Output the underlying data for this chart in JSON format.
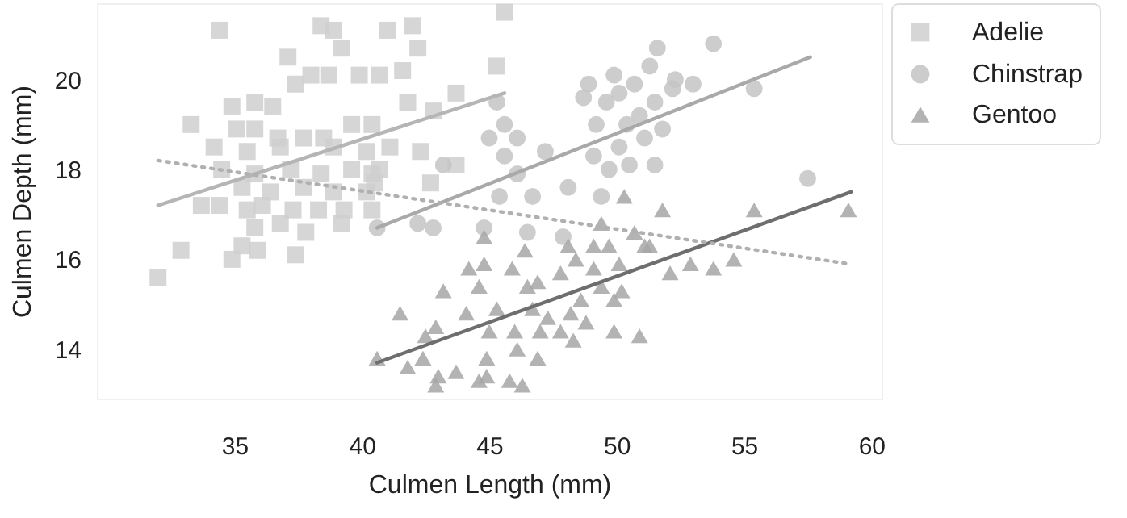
{
  "chart_data": {
    "type": "scatter",
    "xlabel": "Culmen Length (mm)",
    "ylabel": "Culmen Depth (mm)",
    "xlim": [
      29.6,
      60.4
    ],
    "ylim": [
      12.9,
      21.7
    ],
    "xticks": [
      35,
      40,
      45,
      50,
      55,
      60
    ],
    "yticks": [
      14,
      16,
      18,
      20
    ],
    "legend": "top right",
    "series": [
      {
        "name": "Adelie",
        "type": "scatter",
        "marker": "square",
        "color": "#cfcfcf",
        "x": [
          34.4,
          38.4,
          38.9,
          39.2,
          37.1,
          39.9,
          37.4,
          38.0,
          38.7,
          34.9,
          33.3,
          35.8,
          36.5,
          35.8,
          35.1,
          36.7,
          37.7,
          38.5,
          39.6,
          40.4,
          34.2,
          35.5,
          36.8,
          38.9,
          40.2,
          34.5,
          35.8,
          37.2,
          38.4,
          39.6,
          40.4,
          35.3,
          36.4,
          37.7,
          38.9,
          40.2,
          33.7,
          34.4,
          35.5,
          36.1,
          37.3,
          38.3,
          39.3,
          40.4,
          35.8,
          36.8,
          37.8,
          39.2,
          35.3,
          35.9,
          32.9,
          34.9,
          37.4,
          32.0,
          45.6,
          41.0,
          42.0,
          42.2,
          45.3,
          43.7,
          40.7,
          41.6,
          41.8,
          42.8,
          41.1,
          42.3,
          43.7,
          42.7,
          40.7,
          40.5
        ],
        "values": [
          21.1,
          21.2,
          21.1,
          20.7,
          20.5,
          20.1,
          19.9,
          20.1,
          20.1,
          19.4,
          19.0,
          19.5,
          19.4,
          18.9,
          18.9,
          18.7,
          18.7,
          18.7,
          19.0,
          19.0,
          18.5,
          18.4,
          18.5,
          18.5,
          18.4,
          18.0,
          17.9,
          18.0,
          17.9,
          18.0,
          17.9,
          17.6,
          17.5,
          17.6,
          17.5,
          17.5,
          17.2,
          17.2,
          17.1,
          17.2,
          17.1,
          17.1,
          17.1,
          17.1,
          16.7,
          16.8,
          16.6,
          16.8,
          16.3,
          16.2,
          16.2,
          16.0,
          16.1,
          15.6,
          21.5,
          21.1,
          21.2,
          20.7,
          20.3,
          19.7,
          20.1,
          20.2,
          19.5,
          19.3,
          18.5,
          18.4,
          18.1,
          17.7,
          18.0,
          17.7
        ]
      },
      {
        "name": "Chinstrap",
        "type": "scatter",
        "marker": "circle",
        "color": "#c4c4c4",
        "x": [
          40.6,
          42.2,
          42.8,
          43.2,
          44.8,
          45.0,
          45.6,
          46.1,
          45.3,
          45.6,
          46.1,
          45.4,
          46.5,
          46.7,
          47.2,
          48.1,
          47.9,
          48.7,
          48.9,
          49.2,
          49.1,
          49.6,
          49.9,
          50.1,
          50.4,
          50.1,
          50.7,
          50.9,
          51.1,
          51.3,
          51.6,
          51.8,
          51.5,
          50.5,
          49.7,
          49.4,
          52.2,
          53.8,
          52.3,
          53.0,
          55.4,
          51.5,
          57.5
        ],
        "values": [
          16.7,
          16.8,
          16.7,
          18.1,
          16.7,
          18.7,
          19.0,
          18.7,
          19.5,
          18.3,
          17.9,
          17.4,
          16.6,
          17.4,
          18.4,
          17.6,
          16.5,
          19.6,
          19.9,
          19.0,
          18.3,
          19.5,
          20.1,
          19.7,
          19.0,
          18.5,
          19.9,
          19.2,
          18.7,
          20.3,
          20.7,
          18.9,
          18.1,
          18.1,
          18.0,
          17.4,
          19.8,
          20.8,
          20.0,
          19.9,
          19.8,
          19.5,
          17.8
        ]
      },
      {
        "name": "Gentoo",
        "type": "scatter",
        "marker": "triangle",
        "color": "#a6a6a6",
        "x": [
          40.6,
          41.5,
          41.8,
          42.4,
          42.5,
          42.9,
          43.2,
          43.0,
          43.7,
          44.1,
          44.2,
          44.6,
          44.8,
          44.8,
          44.6,
          44.9,
          45.0,
          45.3,
          45.8,
          45.9,
          46.0,
          46.1,
          46.4,
          46.5,
          46.7,
          46.9,
          46.9,
          47.0,
          47.3,
          47.8,
          47.8,
          48.1,
          48.2,
          48.3,
          48.4,
          48.6,
          48.8,
          49.1,
          49.1,
          49.4,
          49.4,
          49.7,
          49.9,
          50.1,
          50.3,
          49.9,
          50.7,
          50.9,
          51.1,
          51.8,
          52.1,
          50.2,
          51.3,
          52.9,
          53.8,
          54.6,
          55.4,
          59.1,
          42.9,
          44.9,
          46.3
        ],
        "values": [
          13.8,
          14.8,
          13.6,
          13.8,
          14.3,
          14.5,
          15.3,
          13.4,
          13.5,
          14.8,
          15.8,
          15.4,
          15.9,
          16.5,
          13.3,
          13.8,
          14.4,
          14.9,
          13.3,
          15.8,
          14.4,
          14.0,
          16.2,
          15.4,
          14.9,
          15.5,
          13.8,
          14.4,
          14.7,
          15.7,
          14.4,
          16.3,
          14.8,
          14.2,
          16.0,
          15.1,
          14.6,
          16.3,
          15.8,
          16.8,
          15.4,
          16.3,
          15.1,
          15.9,
          17.4,
          14.4,
          16.6,
          14.3,
          16.3,
          17.1,
          15.7,
          15.3,
          16.3,
          15.9,
          15.8,
          16.0,
          17.1,
          17.1,
          13.2,
          13.4,
          13.2
        ]
      },
      {
        "type": "line",
        "marker": "none",
        "line_style": "solid",
        "color": "#b5b5b5",
        "x": [
          32.0,
          45.6
        ],
        "values": [
          17.2,
          19.7
        ]
      },
      {
        "type": "line",
        "marker": "none",
        "line_style": "solid",
        "color": "#a9a9a9",
        "x": [
          40.6,
          57.6
        ],
        "values": [
          16.7,
          20.5
        ]
      },
      {
        "type": "line",
        "marker": "none",
        "line_style": "solid",
        "color": "#6e6e6e",
        "x": [
          40.6,
          59.2
        ],
        "values": [
          13.7,
          17.5
        ]
      },
      {
        "type": "line",
        "marker": "none",
        "line_style": "dotted",
        "color": "#b0b0b0",
        "x": [
          32.0,
          59.1
        ],
        "values": [
          18.2,
          15.9
        ]
      }
    ]
  }
}
